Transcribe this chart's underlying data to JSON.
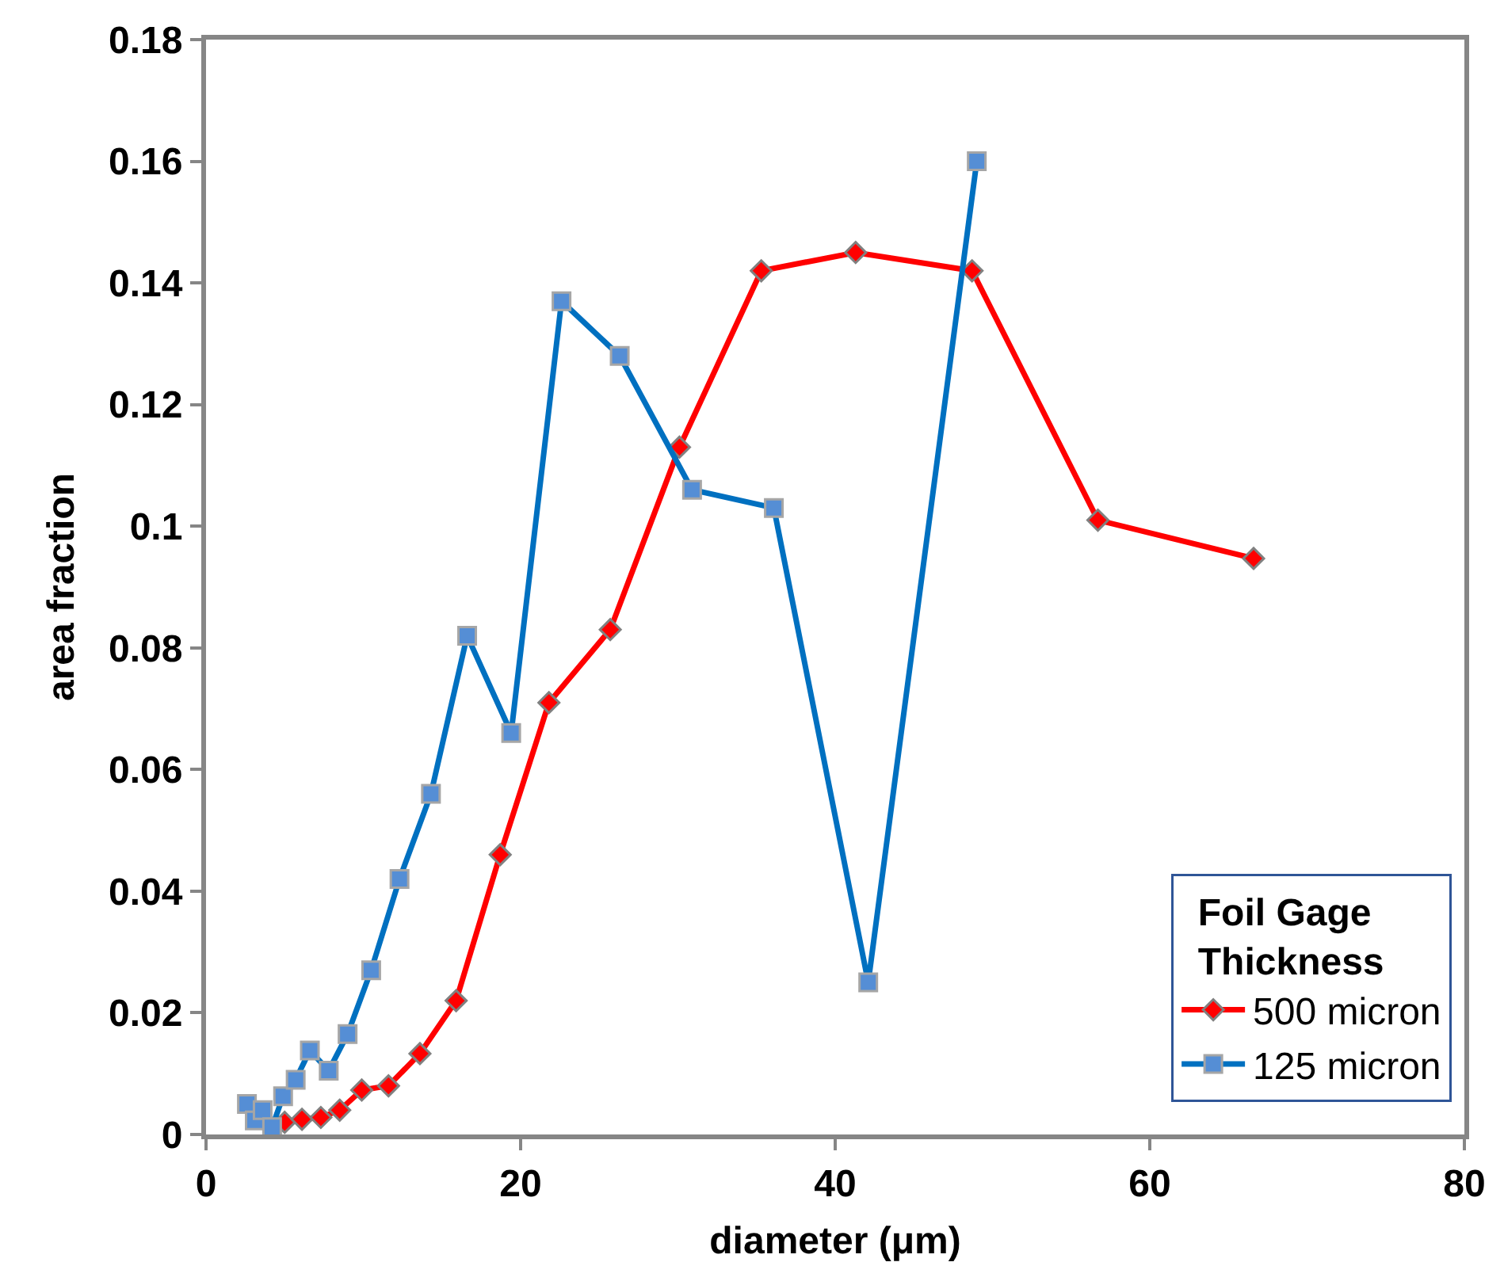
{
  "chart_data": {
    "type": "line",
    "xlabel": "diameter (μm)",
    "ylabel": "area fraction",
    "legend_title": "Foil Gage Thickness",
    "xlim": [
      0,
      80
    ],
    "xticks": [
      0,
      20,
      40,
      60,
      80
    ],
    "ylim": [
      0,
      0.18
    ],
    "yticks": [
      0,
      0.02,
      0.04,
      0.06,
      0.08,
      0.1,
      0.12,
      0.14,
      0.16,
      0.18
    ],
    "legend": "bottom right",
    "line_style": "solid",
    "series": [
      {
        "name": "500 micron",
        "color": "#ff0000",
        "marker": "diamond",
        "x": [
          5.0,
          6.1,
          7.3,
          8.5,
          9.9,
          11.6,
          13.6,
          15.9,
          18.7,
          21.8,
          25.7,
          30.1,
          35.3,
          41.3,
          48.7,
          56.7,
          66.6
        ],
        "values": [
          0.002,
          0.0025,
          0.0028,
          0.004,
          0.0073,
          0.008,
          0.0133,
          0.022,
          0.046,
          0.071,
          0.083,
          0.113,
          0.142,
          0.145,
          0.142,
          0.101,
          0.0947
        ]
      },
      {
        "name": "125 micron",
        "color": "#0070c0",
        "marker": "square",
        "x": [
          2.6,
          3.1,
          3.6,
          4.2,
          4.9,
          5.7,
          6.6,
          7.8,
          9.0,
          10.5,
          12.3,
          14.3,
          16.6,
          19.4,
          22.6,
          26.3,
          30.9,
          36.1,
          42.1,
          49.0
        ],
        "values": [
          0.005,
          0.0023,
          0.004,
          0.0012,
          0.0063,
          0.009,
          0.0138,
          0.0105,
          0.0165,
          0.027,
          0.042,
          0.056,
          0.082,
          0.066,
          0.137,
          0.128,
          0.106,
          0.103,
          0.025,
          0.16
        ]
      }
    ]
  }
}
